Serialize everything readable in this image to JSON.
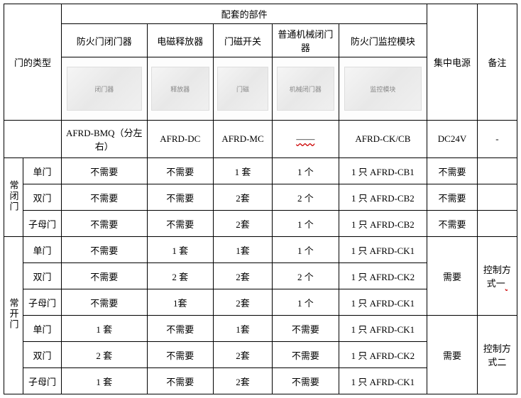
{
  "header": {
    "door_type": "门的类型",
    "components_group": "配套的部件",
    "col1": "防火门闭门器",
    "col2": "电磁释放器",
    "col3": "门磁开关",
    "col4": "普通机械闭门器",
    "col5": "防火门监控模块",
    "power": "集中电源",
    "remark": "备注"
  },
  "models": {
    "c1": "AFRD-BMQ（分左右）",
    "c2": "AFRD-DC",
    "c3": "AFRD-MC",
    "c4": "——",
    "c5": "AFRD-CK/CB",
    "c6": "DC24V",
    "c7": "-"
  },
  "group1": {
    "name": "常闭门",
    "rows": [
      {
        "door": "单门",
        "v1": "不需要",
        "v2": "不需要",
        "v3": "1 套",
        "v4": "1 个",
        "v5": "1 只 AFRD-CB1",
        "v6": "不需要",
        "v7": ""
      },
      {
        "door": "双门",
        "v1": "不需要",
        "v2": "不需要",
        "v3": "2套",
        "v4": "2 个",
        "v5": "1 只 AFRD-CB2",
        "v6": "不需要",
        "v7": ""
      },
      {
        "door": "子母门",
        "v1": "不需要",
        "v2": "不需要",
        "v3": "2套",
        "v4": "1 个",
        "v5": "1 只 AFRD-CB2",
        "v6": "不需要",
        "v7": ""
      }
    ]
  },
  "group2": {
    "name": "常开门",
    "sub1": {
      "remark": "控制方式一",
      "power": "需要",
      "rows": [
        {
          "door": "单门",
          "v1": "不需要",
          "v2": "1 套",
          "v3": "1套",
          "v4": "1 个",
          "v5": "1 只 AFRD-CK1"
        },
        {
          "door": "双门",
          "v1": "不需要",
          "v2": "2 套",
          "v3": "2套",
          "v4": "2 个",
          "v5": "1 只 AFRD-CK2"
        },
        {
          "door": "子母门",
          "v1": "不需要",
          "v2": "1套",
          "v3": "2套",
          "v4": "1 个",
          "v5": "1 只 AFRD-CK1"
        }
      ]
    },
    "sub2": {
      "remark": "控制方式二",
      "power": "需要",
      "rows": [
        {
          "door": "单门",
          "v1": "1 套",
          "v2": "不需要",
          "v3": "1套",
          "v4": "不需要",
          "v5": "1 只 AFRD-CK1"
        },
        {
          "door": "双门",
          "v1": "2 套",
          "v2": "不需要",
          "v3": "2套",
          "v4": "不需要",
          "v5": "1 只 AFRD-CK2"
        },
        {
          "door": "子母门",
          "v1": "1 套",
          "v2": "不需要",
          "v3": "2套",
          "v4": "不需要",
          "v5": "1 只 AFRD-CK1"
        }
      ]
    }
  },
  "img_alt": {
    "c1": "闭门器",
    "c2": "释放器",
    "c3": "门磁",
    "c4": "机械闭门器",
    "c5": "监控模块"
  }
}
